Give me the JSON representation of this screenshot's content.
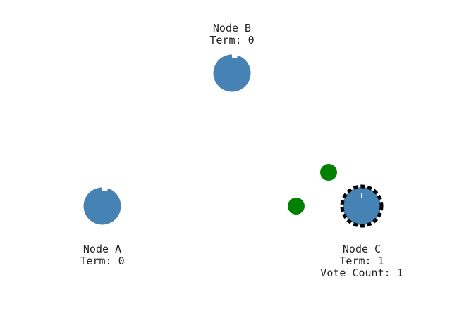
{
  "colors": {
    "node": "#4682b4",
    "message": "#008000",
    "candidate_ring": "#000000",
    "text": "#222222",
    "background": "#ffffff"
  },
  "nodes": {
    "b": {
      "name": "Node B",
      "term": "Term: 0",
      "timeout_remaining": 0.95
    },
    "a": {
      "name": "Node A",
      "term": "Term: 0",
      "timeout_remaining": 0.95
    },
    "c": {
      "name": "Node C",
      "term": "Term: 1",
      "vote_count": "Vote Count: 1",
      "state": "candidate"
    }
  },
  "messages": [
    {
      "type": "request-vote"
    },
    {
      "type": "request-vote"
    }
  ]
}
